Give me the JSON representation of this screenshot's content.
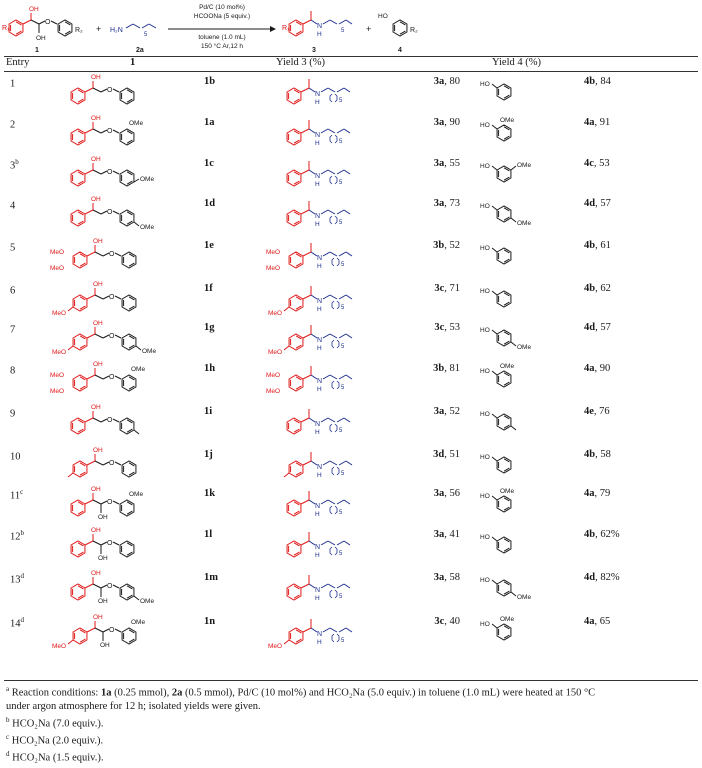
{
  "scheme": {
    "reactant1_label": "1",
    "amine_label": "2a",
    "product3_label": "3",
    "product4_label": "4",
    "conditions": [
      "Pd/C (10 mol%)",
      "HCOONa (5 equiv.)",
      "toluene (1.0 mL)",
      "150 °C Ar,12 h"
    ]
  },
  "table": {
    "headers": [
      "Entry",
      "1",
      "Yield 3 (%)",
      "Yield 4 (%)"
    ],
    "rows": [
      {
        "entry": "1",
        "sup": "",
        "sub": "1b",
        "p3": "3a",
        "y3": ", 80",
        "p4": "4b",
        "y4": ", 84"
      },
      {
        "entry": "2",
        "sup": "",
        "sub": "1a",
        "p3": "3a",
        "y3": ", 90",
        "p4": "4a",
        "y4": ", 91"
      },
      {
        "entry": "3",
        "sup": "b",
        "sub": "1c",
        "p3": "3a",
        "y3": ", 55",
        "p4": "4c",
        "y4": ", 53"
      },
      {
        "entry": "4",
        "sup": "",
        "sub": "1d",
        "p3": "3a",
        "y3": ", 73",
        "p4": "4d",
        "y4": ", 57"
      },
      {
        "entry": "5",
        "sup": "",
        "sub": "1e",
        "p3": "3b",
        "y3": ", 52",
        "p4": "4b",
        "y4": ", 61"
      },
      {
        "entry": "6",
        "sup": "",
        "sub": "1f",
        "p3": "3c",
        "y3": ", 71",
        "p4": "4b",
        "y4": ", 62"
      },
      {
        "entry": "7",
        "sup": "",
        "sub": "1g",
        "p3": "3c",
        "y3": ", 53",
        "p4": "4d",
        "y4": ", 57"
      },
      {
        "entry": "8",
        "sup": "",
        "sub": "1h",
        "p3": "3b",
        "y3": ", 81",
        "p4": "4a",
        "y4": ", 90"
      },
      {
        "entry": "9",
        "sup": "",
        "sub": "1i",
        "p3": "3a",
        "y3": ", 52",
        "p4": "4e",
        "y4": ", 76"
      },
      {
        "entry": "10",
        "sup": "",
        "sub": "1j",
        "p3": "3d",
        "y3": ", 51",
        "p4": "4b",
        "y4": ", 58"
      },
      {
        "entry": "11",
        "sup": "c",
        "sub": "1k",
        "p3": "3a",
        "y3": ", 56",
        "p4": "4a",
        "y4": ", 79"
      },
      {
        "entry": "12",
        "sup": "b",
        "sub": "1l",
        "p3": "3a",
        "y3": ", 41",
        "p4": "4b",
        "y4": ", 62%"
      },
      {
        "entry": "13",
        "sup": "d",
        "sub": "1m",
        "p3": "3a",
        "y3": ", 58",
        "p4": "4d",
        "y4": ", 82%"
      },
      {
        "entry": "14",
        "sup": "d",
        "sub": "1n",
        "p3": "3c",
        "y3": ", 40",
        "p4": "4a",
        "y4": ", 65"
      }
    ]
  },
  "footnotes": {
    "a_sup": "a",
    "a_text": [
      " Reaction conditions: ",
      "1a",
      " (0.25 mmol), ",
      "2a",
      " (0.5 mmol), Pd/C (10 mol%) and HCO₂Na (5.0 equiv.) in toluene (1.0 mL) were heated at 150 °C"
    ],
    "a_line2": "under argon atmosphere for 12 h; isolated yields were given.",
    "b_sup": "b",
    "b_text": " HCO₂Na (7.0 equiv.).",
    "c_sup": "c",
    "c_text": " HCO₂Na (2.0 equiv.).",
    "d_sup": "d",
    "d_text": " HCO₂Na (1.5 equiv.)."
  },
  "mol_text": {
    "OH": "OH",
    "O": "O",
    "HO": "HO",
    "OMe": "OMe",
    "MeO": "MeO",
    "H": "H",
    "N": "N",
    "H2N": "H₂N",
    "n5": "5",
    "R1": "R₁",
    "R2": "R₂",
    "plus": "+"
  },
  "colors": {
    "red": "#e01818",
    "blue": "#1f2f8f",
    "black": "#1a1a1a"
  }
}
